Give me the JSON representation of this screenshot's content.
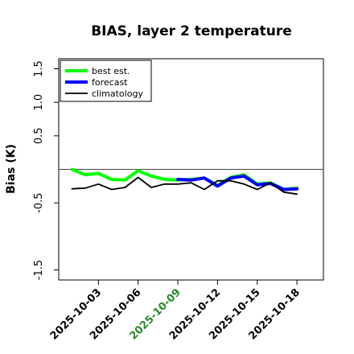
{
  "chart_data": {
    "type": "line",
    "title": "BIAS, layer 2 temperature",
    "xlabel": "",
    "ylabel": "Bias (K)",
    "ylim": [
      -1.65,
      1.65
    ],
    "yticks": [
      -1.5,
      -0.5,
      0.5,
      1.0,
      1.5
    ],
    "ytick_labels": [
      "-1.5",
      "-0.5",
      "0.5",
      "1.0",
      "1.5"
    ],
    "xlim": [
      "2025-10-00",
      "2025-10-20"
    ],
    "x": [
      "2025-10-01",
      "2025-10-02",
      "2025-10-03",
      "2025-10-04",
      "2025-10-05",
      "2025-10-06",
      "2025-10-07",
      "2025-10-08",
      "2025-10-09",
      "2025-10-10",
      "2025-10-11",
      "2025-10-12",
      "2025-10-13",
      "2025-10-14",
      "2025-10-15",
      "2025-10-16",
      "2025-10-17",
      "2025-10-18"
    ],
    "xticks": [
      "2025-10-03",
      "2025-10-06",
      "2025-10-09",
      "2025-10-12",
      "2025-10-15",
      "2025-10-18"
    ],
    "highlight_tick": "2025-10-09",
    "highlight_color": "#228B22",
    "reference_line": 0,
    "grid": false,
    "legend_position": "top-left",
    "series": [
      {
        "name": "best est.",
        "color": "#00ff00",
        "width": 4,
        "values": [
          0.0,
          -0.08,
          -0.06,
          -0.15,
          -0.16,
          -0.02,
          -0.1,
          -0.15,
          -0.16,
          -0.15,
          -0.13,
          -0.24,
          -0.12,
          -0.08,
          -0.22,
          -0.2,
          -0.3,
          -0.28
        ]
      },
      {
        "name": "forecast",
        "color": "#0000ff",
        "width": 4,
        "values": [
          null,
          null,
          null,
          null,
          null,
          null,
          null,
          null,
          -0.15,
          -0.16,
          -0.13,
          -0.25,
          -0.13,
          -0.1,
          -0.23,
          -0.21,
          -0.3,
          -0.29
        ]
      },
      {
        "name": "climatology",
        "color": "#000000",
        "width": 1.8,
        "values": [
          -0.29,
          -0.28,
          -0.22,
          -0.3,
          -0.27,
          -0.12,
          -0.27,
          -0.22,
          -0.22,
          -0.2,
          -0.3,
          -0.17,
          -0.17,
          -0.22,
          -0.3,
          -0.2,
          -0.34,
          -0.37
        ]
      }
    ]
  }
}
